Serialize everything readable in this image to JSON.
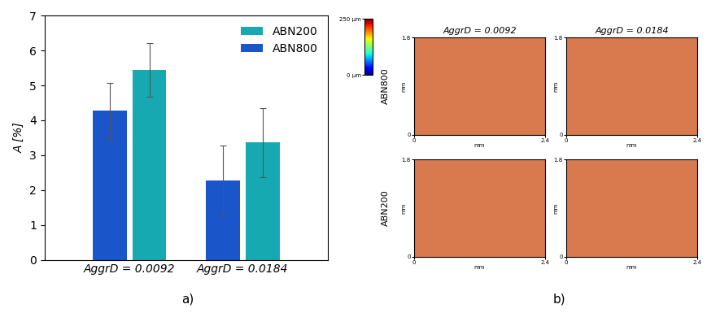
{
  "chart_data": [
    {
      "type": "bar",
      "panel_label": "a)",
      "ylabel": "A [%]",
      "categories": [
        "AggrD = 0.0092",
        "AggrD = 0.0184"
      ],
      "series": [
        {
          "name": "ABN800",
          "color": "#1a55c9",
          "values": [
            4.27,
            2.28
          ],
          "errors": [
            0.8,
            1.0
          ]
        },
        {
          "name": "ABN200",
          "color": "#17a9b2",
          "values": [
            5.45,
            3.36
          ],
          "errors": [
            0.77,
            1.0
          ]
        }
      ],
      "ylim": [
        0,
        7
      ],
      "yticks": [
        0,
        1,
        2,
        3,
        4,
        5,
        6,
        7
      ],
      "grid": false,
      "legend": "upper right"
    },
    {
      "type": "heatmap",
      "panel_label": "b)",
      "columns": [
        "AggrD = 0.0092",
        "AggrD = 0.0184"
      ],
      "rows": [
        "ABN800",
        "ABN200"
      ],
      "xlabel": "mm",
      "ylabel": "mm",
      "xlim": [
        0,
        2.4
      ],
      "ylim": [
        0,
        1.8
      ],
      "xticks": [
        0,
        2.4
      ],
      "yticks": [
        0,
        1.8
      ],
      "colorbar": {
        "range": [
          0,
          250
        ],
        "ticks": [
          {
            "value": 0,
            "label": "0 µm"
          },
          {
            "value": 250,
            "label": "250 µm"
          }
        ]
      }
    }
  ]
}
